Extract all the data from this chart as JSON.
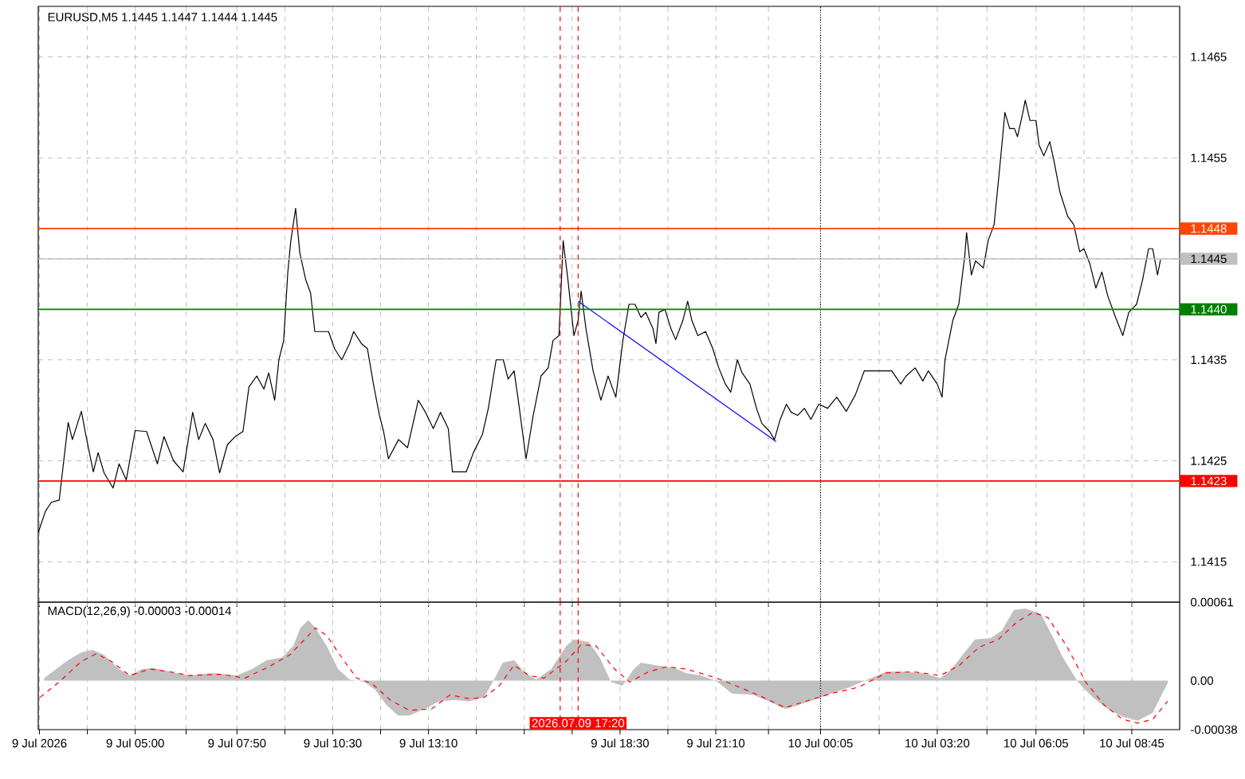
{
  "chart_data": [
    {
      "type": "line",
      "title": "EURUSD,M5 1.1445 1.1447 1.1444 1.1445",
      "x": [
        "2026-07-09T02:18",
        "2026-07-09T02:30",
        "2026-07-09T02:40",
        "2026-07-09T02:53",
        "2026-07-09T03:00",
        "2026-07-09T03:08",
        "2026-07-09T03:15",
        "2026-07-09T03:30",
        "2026-07-09T03:38",
        "2026-07-09T03:50",
        "2026-07-09T03:58",
        "2026-07-09T04:08",
        "2026-07-09T04:23",
        "2026-07-09T04:33",
        "2026-07-09T04:45",
        "2026-07-09T05:00",
        "2026-07-09T05:19",
        "2026-07-09T05:37",
        "2026-07-09T05:48",
        "2026-07-09T06:04",
        "2026-07-09T06:20",
        "2026-07-09T06:36",
        "2026-07-09T06:46",
        "2026-07-09T06:57",
        "2026-07-09T07:10",
        "2026-07-09T07:21",
        "2026-07-09T07:34",
        "2026-07-09T07:47",
        "2026-07-09T08:00",
        "2026-07-09T08:10",
        "2026-07-09T08:23",
        "2026-07-09T08:35",
        "2026-07-09T08:43",
        "2026-07-09T08:53",
        "2026-07-09T09:00",
        "2026-07-09T09:08",
        "2026-07-09T09:15",
        "2026-07-09T09:20",
        "2026-07-09T09:28",
        "2026-07-09T09:35",
        "2026-07-09T09:45",
        "2026-07-09T09:53",
        "2026-07-09T10:00",
        "2026-07-09T10:23",
        "2026-07-09T10:33",
        "2026-07-09T10:45",
        "2026-07-09T10:58",
        "2026-07-09T11:05",
        "2026-07-09T11:18",
        "2026-07-09T11:28",
        "2026-07-09T11:38",
        "2026-07-09T11:48",
        "2026-07-09T11:55",
        "2026-07-09T12:03",
        "2026-07-09T12:20",
        "2026-07-09T12:35",
        "2026-07-09T12:53",
        "2026-07-09T13:05",
        "2026-07-09T13:18",
        "2026-07-09T13:30",
        "2026-07-09T13:43",
        "2026-07-09T13:50",
        "2026-07-09T14:13",
        "2026-07-09T14:25",
        "2026-07-09T14:40",
        "2026-07-09T14:50",
        "2026-07-09T15:03",
        "2026-07-09T15:15",
        "2026-07-09T15:23",
        "2026-07-09T15:33",
        "2026-07-09T15:40",
        "2026-07-09T15:53",
        "2026-07-09T16:05",
        "2026-07-09T16:18",
        "2026-07-09T16:30",
        "2026-07-09T16:38",
        "2026-07-09T16:48",
        "2026-07-09T16:55",
        "2026-07-09T17:03",
        "2026-07-09T17:13",
        "2026-07-09T17:20",
        "2026-07-09T17:25",
        "2026-07-09T17:33",
        "2026-07-09T17:45",
        "2026-07-09T17:58",
        "2026-07-09T18:10",
        "2026-07-09T18:23",
        "2026-07-09T18:35",
        "2026-07-09T18:45",
        "2026-07-09T18:55",
        "2026-07-09T19:05",
        "2026-07-09T19:13",
        "2026-07-09T19:25",
        "2026-07-09T19:30",
        "2026-07-09T19:35",
        "2026-07-09T19:45",
        "2026-07-09T19:55",
        "2026-07-09T20:03",
        "2026-07-09T20:15",
        "2026-07-09T20:23",
        "2026-07-09T20:30",
        "2026-07-09T20:40",
        "2026-07-09T20:53",
        "2026-07-09T21:05",
        "2026-07-09T21:15",
        "2026-07-09T21:26",
        "2026-07-09T21:35",
        "2026-07-09T21:46",
        "2026-07-09T21:54",
        "2026-07-09T22:07",
        "2026-07-09T22:18",
        "2026-07-09T22:27",
        "2026-07-09T22:40",
        "2026-07-09T22:48",
        "2026-07-09T22:57",
        "2026-07-09T23:08",
        "2026-07-09T23:16",
        "2026-07-09T23:27",
        "2026-07-09T23:38",
        "2026-07-09T23:49",
        "2026-07-10T00:02",
        "2026-07-10T00:17",
        "2026-07-10T00:32",
        "2026-07-10T00:48",
        "2026-07-10T01:03",
        "2026-07-10T01:18",
        "2026-07-10T01:43",
        "2026-07-10T02:04",
        "2026-07-10T02:19",
        "2026-07-10T02:28",
        "2026-07-10T02:43",
        "2026-07-10T02:56",
        "2026-07-10T03:05",
        "2026-07-10T03:20",
        "2026-07-10T03:28",
        "2026-07-10T03:33",
        "2026-07-10T03:46",
        "2026-07-10T03:56",
        "2026-07-10T04:06",
        "2026-07-10T04:09",
        "2026-07-10T04:17",
        "2026-07-10T04:24",
        "2026-07-10T04:37",
        "2026-07-10T04:45",
        "2026-07-10T04:55",
        "2026-07-10T05:03",
        "2026-07-10T05:08",
        "2026-07-10T05:13",
        "2026-07-10T05:21",
        "2026-07-10T05:29",
        "2026-07-10T05:34",
        "2026-07-10T05:42",
        "2026-07-10T05:47",
        "2026-07-10T05:55",
        "2026-07-10T06:05",
        "2026-07-10T06:10",
        "2026-07-10T06:18",
        "2026-07-10T06:28",
        "2026-07-10T06:35",
        "2026-07-10T06:45",
        "2026-07-10T06:58",
        "2026-07-10T07:08",
        "2026-07-10T07:18",
        "2026-07-10T07:25",
        "2026-07-10T07:35",
        "2026-07-10T07:45",
        "2026-07-10T07:55",
        "2026-07-10T08:05",
        "2026-07-10T08:18",
        "2026-07-10T08:30",
        "2026-07-10T08:40",
        "2026-07-10T08:53",
        "2026-07-10T09:03",
        "2026-07-10T09:13",
        "2026-07-10T09:20",
        "2026-07-10T09:28",
        "2026-07-10T09:33"
      ],
      "series": [
        {
          "color": "#000000",
          "values": [
            1.14179,
            1.142,
            1.14209,
            1.14211,
            1.14247,
            1.14288,
            1.14271,
            1.14299,
            1.14274,
            1.14239,
            1.14258,
            1.14238,
            1.14223,
            1.14247,
            1.14231,
            1.1428,
            1.14279,
            1.14247,
            1.14274,
            1.1425,
            1.14239,
            1.14298,
            1.14271,
            1.14287,
            1.14271,
            1.14238,
            1.14266,
            1.14274,
            1.14279,
            1.14323,
            1.14334,
            1.14321,
            1.14337,
            1.1431,
            1.1435,
            1.14369,
            1.14437,
            1.14468,
            1.145,
            1.14456,
            1.14429,
            1.14416,
            1.14378,
            1.14378,
            1.14361,
            1.1435,
            1.14366,
            1.14378,
            1.14366,
            1.14361,
            1.14326,
            1.14295,
            1.14279,
            1.14252,
            1.14271,
            1.14263,
            1.1431,
            1.14298,
            1.14282,
            1.14298,
            1.14282,
            1.14239,
            1.14239,
            1.14258,
            1.14276,
            1.14302,
            1.1435,
            1.1435,
            1.14331,
            1.14339,
            1.1431,
            1.14252,
            1.14295,
            1.14334,
            1.14342,
            1.14369,
            1.14374,
            1.14468,
            1.14429,
            1.14374,
            1.14389,
            1.14418,
            1.14381,
            1.14339,
            1.1431,
            1.14334,
            1.14313,
            1.1437,
            1.14405,
            1.14405,
            1.14392,
            1.14397,
            1.14381,
            1.14366,
            1.14397,
            1.144,
            1.14381,
            1.1437,
            1.14389,
            1.14408,
            1.14389,
            1.14374,
            1.14378,
            1.14361,
            1.14342,
            1.14326,
            1.14318,
            1.1435,
            1.14337,
            1.14326,
            1.14302,
            1.14287,
            1.14279,
            1.14271,
            1.1429,
            1.14306,
            1.14298,
            1.14295,
            1.14302,
            1.14291,
            1.14306,
            1.14302,
            1.14313,
            1.14299,
            1.14315,
            1.14339,
            1.14339,
            1.14339,
            1.14326,
            1.14334,
            1.14342,
            1.14329,
            1.14339,
            1.14326,
            1.14313,
            1.1435,
            1.14389,
            1.14405,
            1.14453,
            1.14476,
            1.14434,
            1.14448,
            1.14441,
            1.14468,
            1.14484,
            1.14532,
            1.14563,
            1.14595,
            1.14579,
            1.14579,
            1.14571,
            1.14592,
            1.14607,
            1.14587,
            1.14587,
            1.14563,
            1.14552,
            1.14566,
            1.14547,
            1.14516,
            1.14492,
            1.14484,
            1.14457,
            1.1446,
            1.14445,
            1.14421,
            1.14437,
            1.14413,
            1.14392,
            1.14374,
            1.14397,
            1.14405,
            1.14429,
            1.1446,
            1.1446,
            1.14434,
            1.14449
          ]
        },
        {
          "color": "#0000ff",
          "x": [
            "2026-07-09T17:20",
            "2026-07-09T22:51"
          ],
          "values": [
            1.14408,
            1.14269
          ]
        }
      ],
      "xlim": [
        "2026-07-09T02:18",
        "2026-07-10T10:05"
      ],
      "ylim": [
        1.1411,
        1.147
      ],
      "xticks": [
        "2026-07-09T02:20",
        "2026-07-09T03:40",
        "2026-07-09T05:00",
        "2026-07-09T06:25",
        "2026-07-09T07:50",
        "2026-07-09T09:10",
        "2026-07-09T10:30",
        "2026-07-09T11:50",
        "2026-07-09T13:10",
        "2026-07-09T14:30",
        "2026-07-09T15:50",
        "2026-07-09T17:10",
        "2026-07-09T18:30",
        "2026-07-09T19:50",
        "2026-07-09T21:10",
        "2026-07-09T22:38",
        "2026-07-10T00:05",
        "2026-07-10T01:43",
        "2026-07-10T03:20",
        "2026-07-10T04:43",
        "2026-07-10T06:05",
        "2026-07-10T07:25",
        "2026-07-10T08:45"
      ],
      "yticks": [
        1.1415,
        1.1425,
        1.1435,
        {
          "value": 1.1445,
          "label": null
        },
        1.1455,
        1.1465
      ],
      "tick_labels": "y",
      "grid": true,
      "ref_lines": [
        {
          "axis": "y",
          "value": 1.1448,
          "label": "1.1448",
          "color": "#ff4500"
        },
        {
          "axis": "y",
          "value": 1.1445,
          "label": "1.1445",
          "color": "#c0c0c0"
        },
        {
          "axis": "y",
          "value": 1.144,
          "label": "1.1440",
          "color": "#008000"
        },
        {
          "axis": "y",
          "value": 1.1423,
          "label": "1.1423",
          "color": "#ff0000"
        },
        {
          "axis": "x",
          "value": "2026-07-09T16:50",
          "color": "#ff0000",
          "line_style": "dashed"
        },
        {
          "axis": "x",
          "value": "2026-07-09T17:20",
          "color": "#ff0000",
          "line_style": "dashed"
        },
        {
          "axis": "x",
          "value": "2026-07-10T00:05",
          "color": "#000000",
          "line_style": "dotted"
        }
      ]
    },
    {
      "type": "line",
      "title": "MACD(12,26,9) -0.00003 -0.00014",
      "series": [
        {
          "type": "area",
          "color": "#c0c0c0",
          "x": [
            "2026-07-09T02:28",
            "2026-07-09T03:05",
            "2026-07-09T03:30",
            "2026-07-09T03:49",
            "2026-07-09T04:08",
            "2026-07-09T04:33",
            "2026-07-09T04:51",
            "2026-07-09T05:11",
            "2026-07-09T05:31",
            "2026-07-09T05:57",
            "2026-07-09T06:30",
            "2026-07-09T07:10",
            "2026-07-09T07:50",
            "2026-07-09T08:15",
            "2026-07-09T08:40",
            "2026-07-09T09:05",
            "2026-07-09T09:24",
            "2026-07-09T09:36",
            "2026-07-09T09:49",
            "2026-07-09T10:01",
            "2026-07-09T10:20",
            "2026-07-09T10:39",
            "2026-07-09T10:58",
            "2026-07-09T11:23",
            "2026-07-09T11:41",
            "2026-07-09T12:00",
            "2026-07-09T12:19",
            "2026-07-09T12:38",
            "2026-07-09T13:03",
            "2026-07-09T13:28",
            "2026-07-09T13:53",
            "2026-07-09T14:18",
            "2026-07-09T14:43",
            "2026-07-09T15:01",
            "2026-07-09T15:14",
            "2026-07-09T15:33",
            "2026-07-09T15:51",
            "2026-07-09T16:10",
            "2026-07-09T16:35",
            "2026-07-09T17:00",
            "2026-07-09T17:13",
            "2026-07-09T17:38",
            "2026-07-09T17:56",
            "2026-07-09T18:15",
            "2026-07-09T18:34",
            "2026-07-09T18:53",
            "2026-07-09T19:05",
            "2026-07-09T19:30",
            "2026-07-09T20:01",
            "2026-07-09T20:20",
            "2026-07-09T20:45",
            "2026-07-09T21:10",
            "2026-07-09T21:37",
            "2026-07-09T22:12",
            "2026-07-09T22:39",
            "2026-07-09T23:06",
            "2026-07-09T23:27",
            "2026-07-09T23:54",
            "2026-07-10T00:23",
            "2026-07-10T00:54",
            "2026-07-10T01:24",
            "2026-07-10T01:55",
            "2026-07-10T02:25",
            "2026-07-10T02:56",
            "2026-07-10T03:25",
            "2026-07-10T03:44",
            "2026-07-10T04:04",
            "2026-07-10T04:23",
            "2026-07-10T04:49",
            "2026-07-10T05:08",
            "2026-07-10T05:28",
            "2026-07-10T05:47",
            "2026-07-10T06:13",
            "2026-07-10T06:31",
            "2026-07-10T06:50",
            "2026-07-10T07:15",
            "2026-07-10T07:40",
            "2026-07-10T08:05",
            "2026-07-10T08:30",
            "2026-07-10T08:55",
            "2026-07-10T09:20",
            "2026-07-10T09:39",
            "2026-07-10T09:45"
          ],
          "values": [
            2e-05,
            0.00015,
            0.00022,
            0.00024,
            0.0002,
            9e-05,
            4e-05,
            9e-05,
            0.0001,
            7e-05,
            4e-05,
            6e-05,
            4e-05,
            9e-05,
            0.00016,
            0.00018,
            0.00027,
            0.00041,
            0.00047,
            0.00041,
            0.00027,
            9e-05,
            1e-05,
            -1e-05,
            -7e-05,
            -0.00019,
            -0.00027,
            -0.00027,
            -0.00022,
            -0.00016,
            -0.00015,
            -0.00016,
            -0.00013,
            2e-05,
            0.00014,
            0.00016,
            6e-05,
            1e-05,
            9e-05,
            0.00027,
            0.00032,
            0.0003,
            0.00018,
            -1e-05,
            -4e-05,
            9e-05,
            0.00014,
            0.00012,
            0.0001,
            6e-05,
            4e-05,
            0,
            -0.0001,
            -0.00011,
            -0.00016,
            -0.00022,
            -0.00019,
            -0.00015,
            -0.0001,
            -5e-05,
            1e-05,
            7e-05,
            7e-05,
            6e-05,
            2e-05,
            9e-05,
            0.00021,
            0.00032,
            0.00033,
            0.00039,
            0.00055,
            0.00056,
            0.00052,
            0.00036,
            0.00018,
            -1e-05,
            -0.00013,
            -0.00022,
            -0.00028,
            -0.00031,
            -0.00025,
            -7e-05,
            -2e-05
          ]
        },
        {
          "type": "line",
          "color": "#ff0000",
          "line_style": "dashed",
          "x": [
            "2026-07-09T02:21",
            "2026-07-09T02:53",
            "2026-07-09T03:30",
            "2026-07-09T03:55",
            "2026-07-09T04:20",
            "2026-07-09T04:51",
            "2026-07-09T05:24",
            "2026-07-09T05:57",
            "2026-07-09T06:30",
            "2026-07-09T07:23",
            "2026-07-09T08:03",
            "2026-07-09T08:40",
            "2026-07-09T09:18",
            "2026-07-09T09:43",
            "2026-07-09T10:01",
            "2026-07-09T10:20",
            "2026-07-09T10:45",
            "2026-07-09T11:10",
            "2026-07-09T11:35",
            "2026-07-09T12:06",
            "2026-07-09T12:38",
            "2026-07-09T13:15",
            "2026-07-09T13:46",
            "2026-07-09T14:18",
            "2026-07-09T14:43",
            "2026-07-09T15:08",
            "2026-07-09T15:33",
            "2026-07-09T15:58",
            "2026-07-09T16:23",
            "2026-07-09T17:00",
            "2026-07-09T17:25",
            "2026-07-09T17:50",
            "2026-07-09T18:21",
            "2026-07-09T18:46",
            "2026-07-09T19:18",
            "2026-07-09T19:49",
            "2026-07-09T20:20",
            "2026-07-09T20:51",
            "2026-07-09T21:17",
            "2026-07-09T21:44",
            "2026-07-09T22:25",
            "2026-07-09T23:06",
            "2026-07-09T23:40",
            "2026-07-10T00:23",
            "2026-07-10T01:09",
            "2026-07-10T01:55",
            "2026-07-10T02:40",
            "2026-07-10T03:25",
            "2026-07-10T03:57",
            "2026-07-10T04:30",
            "2026-07-10T05:02",
            "2026-07-10T05:34",
            "2026-07-10T06:00",
            "2026-07-10T06:25",
            "2026-07-10T06:56",
            "2026-07-10T07:28",
            "2026-07-10T07:59",
            "2026-07-10T08:30",
            "2026-07-10T08:55",
            "2026-07-10T09:20",
            "2026-07-10T09:45"
          ],
          "values": [
            -0.00013,
            -1e-05,
            0.00015,
            0.00021,
            0.00015,
            4e-05,
            9e-05,
            7e-05,
            4e-05,
            5e-05,
            2e-05,
            0.0001,
            0.0002,
            0.00032,
            0.00041,
            0.00035,
            0.00018,
            2e-05,
            -2e-05,
            -0.00015,
            -0.00023,
            -0.00022,
            -0.00011,
            -0.00014,
            -0.00013,
            -4e-05,
            0.00012,
            4e-05,
            2e-05,
            0.00015,
            0.00028,
            0.00027,
            9e-05,
            -1e-05,
            7e-05,
            0.00011,
            9e-05,
            5e-05,
            1e-05,
            -4e-05,
            -0.00012,
            -0.00021,
            -0.00016,
            -0.0001,
            -5e-05,
            6e-05,
            7e-05,
            4e-05,
            0.00012,
            0.00026,
            0.00032,
            0.00046,
            0.00053,
            0.00049,
            0.00027,
            -1e-05,
            -0.00019,
            -0.0003,
            -0.00033,
            -0.0003,
            -0.00016
          ]
        }
      ],
      "xlim": [
        "2026-07-09T02:18",
        "2026-07-10T10:05"
      ],
      "ylim": [
        -0.00038,
        0.00061
      ],
      "xticks": [
        {
          "value": "2026-07-09T02:20",
          "label": "9 Jul 2026"
        },
        {
          "value": "2026-07-09T03:40",
          "label": null
        },
        {
          "value": "2026-07-09T05:00",
          "label": "9 Jul 05:00"
        },
        {
          "value": "2026-07-09T06:25",
          "label": null
        },
        {
          "value": "2026-07-09T07:50",
          "label": "9 Jul 07:50"
        },
        {
          "value": "2026-07-09T09:10",
          "label": null
        },
        {
          "value": "2026-07-09T10:30",
          "label": "9 Jul 10:30"
        },
        {
          "value": "2026-07-09T11:50",
          "label": null
        },
        {
          "value": "2026-07-09T13:10",
          "label": "9 Jul 13:10"
        },
        {
          "value": "2026-07-09T14:30",
          "label": null
        },
        {
          "value": "2026-07-09T15:50",
          "label": null
        },
        {
          "value": "2026-07-09T17:10",
          "label": null
        },
        {
          "value": "2026-07-09T18:30",
          "label": "9 Jul 18:30"
        },
        {
          "value": "2026-07-09T19:50",
          "label": null
        },
        {
          "value": "2026-07-09T21:10",
          "label": "9 Jul 21:10"
        },
        {
          "value": "2026-07-09T22:38",
          "label": null
        },
        {
          "value": "2026-07-10T00:05",
          "label": "10 Jul 00:05"
        },
        {
          "value": "2026-07-10T01:43",
          "label": null
        },
        {
          "value": "2026-07-10T03:20",
          "label": "10 Jul 03:20"
        },
        {
          "value": "2026-07-10T04:43",
          "label": null
        },
        {
          "value": "2026-07-10T06:05",
          "label": "10 Jul 06:05"
        },
        {
          "value": "2026-07-10T07:25",
          "label": null
        },
        {
          "value": "2026-07-10T08:45",
          "label": "10 Jul 08:45"
        }
      ],
      "yticks": [
        -0.00038,
        {
          "value": 0,
          "label": "0.00"
        },
        0.00061
      ],
      "grid": "x",
      "ref_lines": [
        {
          "axis": "x",
          "value": "2026-07-09T16:50",
          "color": "#ff0000",
          "line_style": "dashed"
        },
        {
          "axis": "x",
          "value": "2026-07-09T17:20",
          "label": "2026.07.09 17:20",
          "color": "#ff0000",
          "line_style": "dashed"
        },
        {
          "axis": "x",
          "value": "2026-07-10T00:05",
          "color": "#000000",
          "line_style": "dotted"
        }
      ]
    }
  ]
}
